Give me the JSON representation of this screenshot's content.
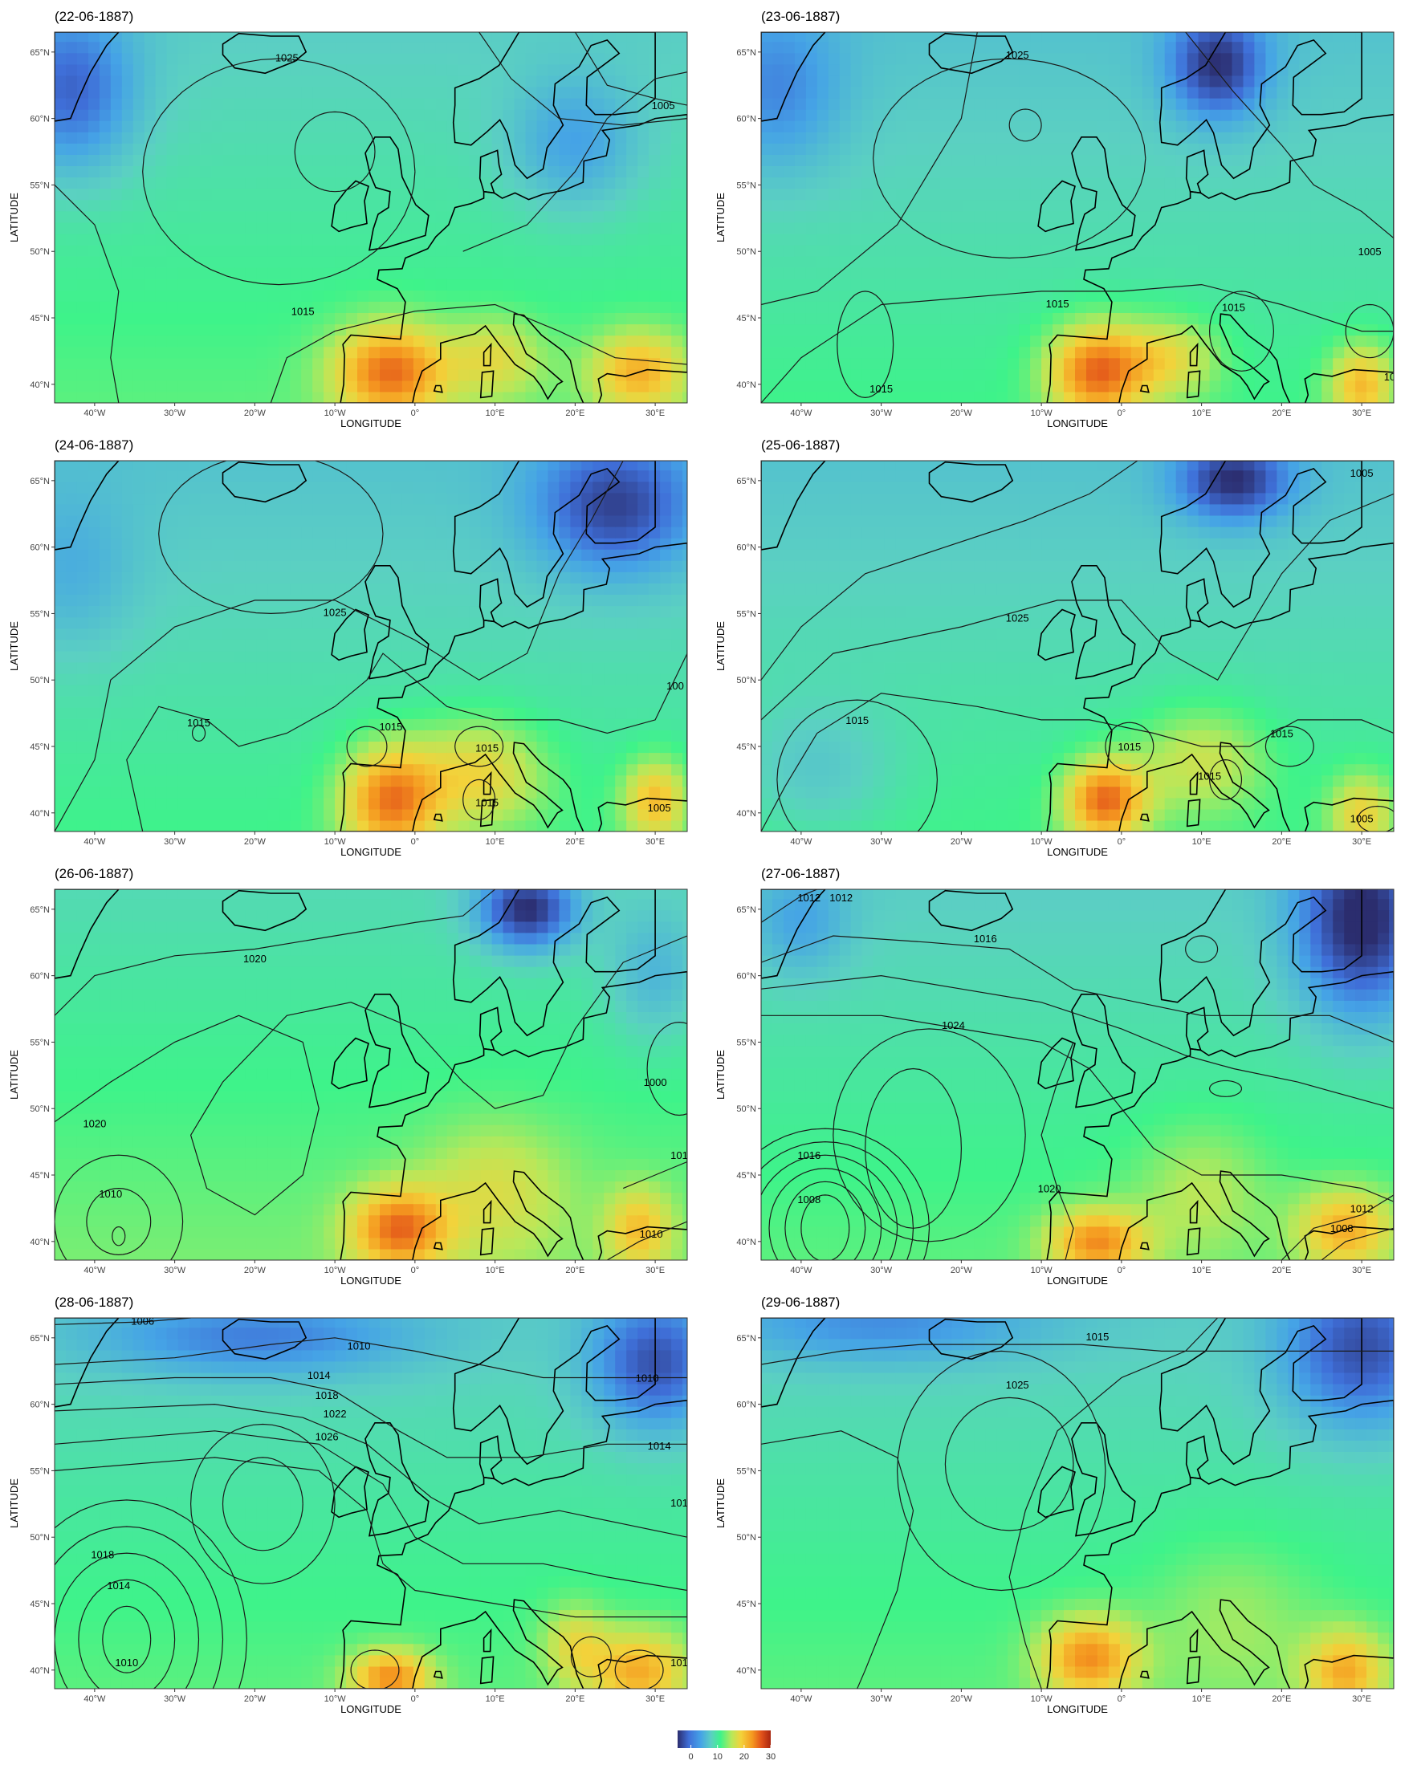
{
  "axes": {
    "xlabel": "LONGITUDE",
    "ylabel": "LATITUDE",
    "x_ticks": [
      "40°W",
      "30°W",
      "20°W",
      "10°W",
      "0°",
      "10°E",
      "20°E",
      "30°E"
    ],
    "y_ticks": [
      "40°N",
      "45°N",
      "50°N",
      "55°N",
      "60°N",
      "65°N"
    ]
  },
  "colorbar": {
    "ticks": [
      "0",
      "10",
      "20",
      "30"
    ],
    "range": [
      -5,
      30
    ],
    "colors": [
      "#2b2d6e",
      "#3f6fd8",
      "#45a3e6",
      "#5bd0c2",
      "#3ef38a",
      "#b8e85a",
      "#f3d23a",
      "#f59a20",
      "#e2521a",
      "#a8250f"
    ]
  },
  "chart_data": [
    {
      "type": "heatmap",
      "title": "(22-06-1887)",
      "contour_labels": [
        "1025",
        "1015",
        "1005"
      ],
      "lon_range": [
        -45,
        34
      ],
      "lat_range": [
        39,
        66
      ]
    },
    {
      "type": "heatmap",
      "title": "(23-06-1887)",
      "contour_labels": [
        "1025",
        "1015",
        "1015",
        "1005",
        "1015",
        "10"
      ],
      "lon_range": [
        -45,
        34
      ],
      "lat_range": [
        39,
        66
      ]
    },
    {
      "type": "heatmap",
      "title": "(24-06-1887)",
      "contour_labels": [
        "1025",
        "1015",
        "1015",
        "1015",
        "1015",
        "1005",
        "100"
      ],
      "lon_range": [
        -45,
        34
      ],
      "lat_range": [
        39,
        66
      ]
    },
    {
      "type": "heatmap",
      "title": "(25-06-1887)",
      "contour_labels": [
        "1005",
        "1025",
        "1015",
        "1015",
        "1015",
        "1015",
        "1005"
      ],
      "lon_range": [
        -45,
        34
      ],
      "lat_range": [
        39,
        66
      ]
    },
    {
      "type": "heatmap",
      "title": "(26-06-1887)",
      "contour_labels": [
        "1020",
        "1020",
        "1010",
        "1000",
        "101",
        "1010"
      ],
      "lon_range": [
        -45,
        34
      ],
      "lat_range": [
        39,
        66
      ]
    },
    {
      "type": "heatmap",
      "title": "(27-06-1887)",
      "contour_labels": [
        "1012",
        "1012",
        "1016",
        "1024",
        "1016",
        "1008",
        "1020",
        "1012",
        "1008"
      ],
      "lon_range": [
        -45,
        34
      ],
      "lat_range": [
        39,
        66
      ]
    },
    {
      "type": "heatmap",
      "title": "(28-06-1887)",
      "contour_labels": [
        "1006",
        "1010",
        "1014",
        "1018",
        "1022",
        "1026",
        "1010",
        "1014",
        "101",
        "1018",
        "1014",
        "1010",
        "101"
      ],
      "lon_range": [
        -45,
        34
      ],
      "lat_range": [
        39,
        66
      ]
    },
    {
      "type": "heatmap",
      "title": "(29-06-1887)",
      "contour_labels": [
        "1015",
        "1025"
      ],
      "lon_range": [
        -45,
        34
      ],
      "lat_range": [
        39,
        66
      ]
    }
  ]
}
